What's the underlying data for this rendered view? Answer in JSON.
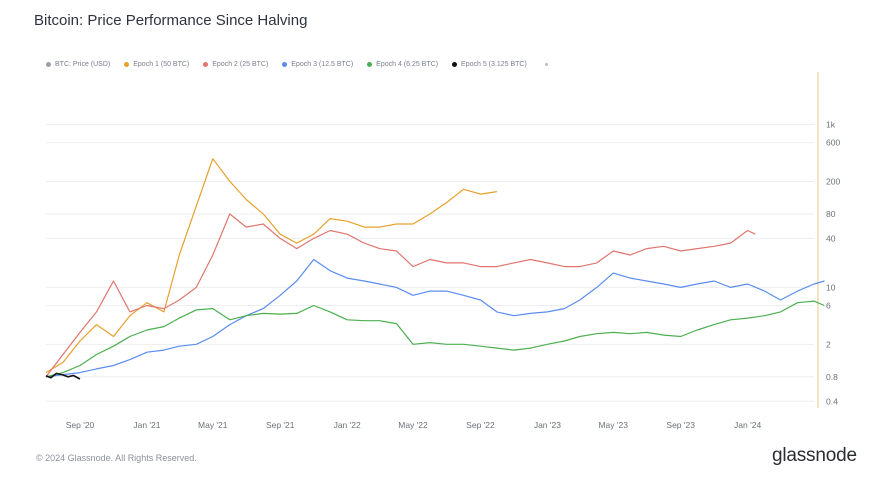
{
  "header": {
    "title": "Bitcoin: Price Performance Since Halving"
  },
  "legend": {
    "items": [
      {
        "label": "BTC: Price (USD)",
        "color": "#9aa0a6"
      },
      {
        "label": "Epoch 1 (50 BTC)",
        "color": "#e8a02c"
      },
      {
        "label": "Epoch 2 (25 BTC)",
        "color": "#e0766e"
      },
      {
        "label": "Epoch 3 (12.5 BTC)",
        "color": "#5b8def"
      },
      {
        "label": "Epoch 4 (6.25 BTC)",
        "color": "#4caf50"
      },
      {
        "label": "Epoch 5 (3.125 BTC)",
        "color": "#111111"
      }
    ]
  },
  "footer": {
    "copyright": "© 2024 Glassnode. All Rights Reserved.",
    "brand": "glassnode"
  },
  "chart_data": {
    "type": "line",
    "title": "Bitcoin: Price Performance Since Halving",
    "x_axis": {
      "range": [
        "2020-07",
        "2024-05"
      ],
      "tick_labels": [
        "Sep '20",
        "Jan '21",
        "May '21",
        "Sep '21",
        "Jan '22",
        "May '22",
        "Sep '22",
        "Jan '23",
        "May '23",
        "Sep '23",
        "Jan '24"
      ],
      "tick_dates": [
        "2020-09",
        "2021-01",
        "2021-05",
        "2021-09",
        "2022-01",
        "2022-05",
        "2022-09",
        "2023-01",
        "2023-05",
        "2023-09",
        "2024-01"
      ]
    },
    "y_axis": {
      "scale": "log",
      "range": [
        0.35,
        2000
      ],
      "position": "right",
      "tick_labels": [
        "0.4",
        "0.8",
        "2",
        "6",
        "10",
        "40",
        "80",
        "200",
        "600",
        "1k"
      ],
      "tick_values": [
        0.4,
        0.8,
        2,
        6,
        10,
        40,
        80,
        200,
        600,
        1000
      ]
    },
    "grid": true,
    "legend_position": "top",
    "series": [
      {
        "name": "Epoch 1 (50 BTC)",
        "color": "#e8a02c",
        "points": [
          [
            "2020-07-01",
            0.9
          ],
          [
            "2020-08-01",
            1.2
          ],
          [
            "2020-09-01",
            2.2
          ],
          [
            "2020-10-01",
            3.5
          ],
          [
            "2020-11-01",
            2.5
          ],
          [
            "2020-12-01",
            4.5
          ],
          [
            "2021-01-01",
            6.5
          ],
          [
            "2021-02-01",
            5.0
          ],
          [
            "2021-03-01",
            25
          ],
          [
            "2021-04-01",
            100
          ],
          [
            "2021-05-01",
            380
          ],
          [
            "2021-06-01",
            200
          ],
          [
            "2021-07-01",
            120
          ],
          [
            "2021-08-01",
            80
          ],
          [
            "2021-09-01",
            45
          ],
          [
            "2021-10-01",
            35
          ],
          [
            "2021-11-01",
            45
          ],
          [
            "2021-12-01",
            70
          ],
          [
            "2022-01-01",
            65
          ],
          [
            "2022-02-01",
            55
          ],
          [
            "2022-03-01",
            55
          ],
          [
            "2022-04-01",
            60
          ],
          [
            "2022-05-01",
            60
          ],
          [
            "2022-06-01",
            80
          ],
          [
            "2022-07-01",
            110
          ],
          [
            "2022-08-01",
            160
          ],
          [
            "2022-09-01",
            140
          ],
          [
            "2022-10-01",
            150
          ]
        ]
      },
      {
        "name": "Epoch 2 (25 BTC)",
        "color": "#e0766e",
        "points": [
          [
            "2020-07-01",
            0.8
          ],
          [
            "2020-08-01",
            1.5
          ],
          [
            "2020-09-01",
            2.8
          ],
          [
            "2020-10-01",
            5
          ],
          [
            "2020-11-01",
            12
          ],
          [
            "2020-12-01",
            5
          ],
          [
            "2021-01-01",
            6
          ],
          [
            "2021-02-01",
            5.5
          ],
          [
            "2021-03-01",
            7
          ],
          [
            "2021-04-01",
            10
          ],
          [
            "2021-05-01",
            25
          ],
          [
            "2021-06-01",
            80
          ],
          [
            "2021-07-01",
            55
          ],
          [
            "2021-08-01",
            60
          ],
          [
            "2021-09-01",
            40
          ],
          [
            "2021-10-01",
            30
          ],
          [
            "2021-11-01",
            40
          ],
          [
            "2021-12-01",
            50
          ],
          [
            "2022-01-01",
            45
          ],
          [
            "2022-02-01",
            35
          ],
          [
            "2022-03-01",
            30
          ],
          [
            "2022-04-01",
            28
          ],
          [
            "2022-05-01",
            18
          ],
          [
            "2022-06-01",
            22
          ],
          [
            "2022-07-01",
            20
          ],
          [
            "2022-08-01",
            20
          ],
          [
            "2022-09-01",
            18
          ],
          [
            "2022-10-01",
            18
          ],
          [
            "2022-11-01",
            20
          ],
          [
            "2022-12-01",
            22
          ],
          [
            "2023-01-01",
            20
          ],
          [
            "2023-02-01",
            18
          ],
          [
            "2023-03-01",
            18
          ],
          [
            "2023-04-01",
            20
          ],
          [
            "2023-05-01",
            28
          ],
          [
            "2023-06-01",
            25
          ],
          [
            "2023-07-01",
            30
          ],
          [
            "2023-08-01",
            32
          ],
          [
            "2023-09-01",
            28
          ],
          [
            "2023-10-01",
            30
          ],
          [
            "2023-11-01",
            32
          ],
          [
            "2023-12-01",
            35
          ],
          [
            "2024-01-01",
            50
          ],
          [
            "2024-01-15",
            45
          ]
        ]
      },
      {
        "name": "Epoch 3 (12.5 BTC)",
        "color": "#5b8def",
        "points": [
          [
            "2020-07-01",
            0.8
          ],
          [
            "2020-08-01",
            0.85
          ],
          [
            "2020-09-01",
            0.9
          ],
          [
            "2020-10-01",
            1.0
          ],
          [
            "2020-11-01",
            1.1
          ],
          [
            "2020-12-01",
            1.3
          ],
          [
            "2021-01-01",
            1.6
          ],
          [
            "2021-02-01",
            1.7
          ],
          [
            "2021-03-01",
            1.9
          ],
          [
            "2021-04-01",
            2.0
          ],
          [
            "2021-05-01",
            2.5
          ],
          [
            "2021-06-01",
            3.5
          ],
          [
            "2021-07-01",
            4.5
          ],
          [
            "2021-08-01",
            5.5
          ],
          [
            "2021-09-01",
            8
          ],
          [
            "2021-10-01",
            12
          ],
          [
            "2021-11-01",
            22
          ],
          [
            "2021-12-01",
            16
          ],
          [
            "2022-01-01",
            13
          ],
          [
            "2022-02-01",
            12
          ],
          [
            "2022-03-01",
            11
          ],
          [
            "2022-04-01",
            10
          ],
          [
            "2022-05-01",
            8
          ],
          [
            "2022-06-01",
            9
          ],
          [
            "2022-07-01",
            9
          ],
          [
            "2022-08-01",
            8
          ],
          [
            "2022-09-01",
            7
          ],
          [
            "2022-10-01",
            5
          ],
          [
            "2022-11-01",
            4.5
          ],
          [
            "2022-12-01",
            4.8
          ],
          [
            "2023-01-01",
            5
          ],
          [
            "2023-02-01",
            5.5
          ],
          [
            "2023-03-01",
            7
          ],
          [
            "2023-04-01",
            10
          ],
          [
            "2023-05-01",
            15
          ],
          [
            "2023-06-01",
            13
          ],
          [
            "2023-07-01",
            12
          ],
          [
            "2023-08-01",
            11
          ],
          [
            "2023-09-01",
            10
          ],
          [
            "2023-10-01",
            11
          ],
          [
            "2023-11-01",
            12
          ],
          [
            "2023-12-01",
            10
          ],
          [
            "2024-01-01",
            11
          ],
          [
            "2024-02-01",
            9
          ],
          [
            "2024-03-01",
            7
          ],
          [
            "2024-04-01",
            9
          ],
          [
            "2024-05-01",
            11
          ],
          [
            "2024-05-20",
            12
          ]
        ]
      },
      {
        "name": "Epoch 4 (6.25 BTC)",
        "color": "#4caf50",
        "points": [
          [
            "2020-07-01",
            0.8
          ],
          [
            "2020-08-01",
            0.9
          ],
          [
            "2020-09-01",
            1.1
          ],
          [
            "2020-10-01",
            1.5
          ],
          [
            "2020-11-01",
            1.9
          ],
          [
            "2020-12-01",
            2.5
          ],
          [
            "2021-01-01",
            3.0
          ],
          [
            "2021-02-01",
            3.3
          ],
          [
            "2021-03-01",
            4.2
          ],
          [
            "2021-04-01",
            5.3
          ],
          [
            "2021-05-01",
            5.5
          ],
          [
            "2021-06-01",
            4.0
          ],
          [
            "2021-07-01",
            4.5
          ],
          [
            "2021-08-01",
            4.8
          ],
          [
            "2021-09-01",
            4.7
          ],
          [
            "2021-10-01",
            4.8
          ],
          [
            "2021-11-01",
            6.0
          ],
          [
            "2021-12-01",
            5.0
          ],
          [
            "2022-01-01",
            4.0
          ],
          [
            "2022-02-01",
            3.9
          ],
          [
            "2022-03-01",
            3.9
          ],
          [
            "2022-04-01",
            3.6
          ],
          [
            "2022-05-01",
            2.0
          ],
          [
            "2022-06-01",
            2.1
          ],
          [
            "2022-07-01",
            2.0
          ],
          [
            "2022-08-01",
            2.0
          ],
          [
            "2022-09-01",
            1.9
          ],
          [
            "2022-10-01",
            1.8
          ],
          [
            "2022-11-01",
            1.7
          ],
          [
            "2022-12-01",
            1.8
          ],
          [
            "2023-01-01",
            2.0
          ],
          [
            "2023-02-01",
            2.2
          ],
          [
            "2023-03-01",
            2.5
          ],
          [
            "2023-04-01",
            2.7
          ],
          [
            "2023-05-01",
            2.8
          ],
          [
            "2023-06-01",
            2.7
          ],
          [
            "2023-07-01",
            2.8
          ],
          [
            "2023-08-01",
            2.6
          ],
          [
            "2023-09-01",
            2.5
          ],
          [
            "2023-10-01",
            3.0
          ],
          [
            "2023-11-01",
            3.5
          ],
          [
            "2023-12-01",
            4.0
          ],
          [
            "2024-01-01",
            4.2
          ],
          [
            "2024-02-01",
            4.5
          ],
          [
            "2024-03-01",
            5.0
          ],
          [
            "2024-04-01",
            6.5
          ],
          [
            "2024-05-01",
            6.8
          ],
          [
            "2024-05-20",
            6.0
          ]
        ]
      },
      {
        "name": "Epoch 5 (3.125 BTC)",
        "color": "#111111",
        "points": [
          [
            "2020-07-01",
            0.82
          ],
          [
            "2020-07-10",
            0.78
          ],
          [
            "2020-07-20",
            0.88
          ],
          [
            "2020-08-01",
            0.84
          ],
          [
            "2020-08-10",
            0.8
          ],
          [
            "2020-08-20",
            0.83
          ],
          [
            "2020-09-01",
            0.75
          ]
        ]
      }
    ]
  }
}
